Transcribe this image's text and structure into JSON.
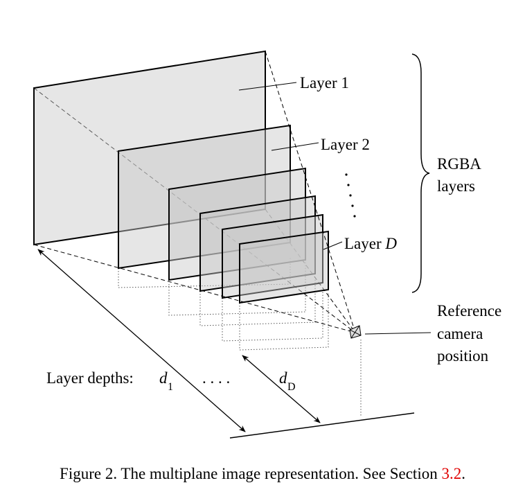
{
  "labels": {
    "layer1": "Layer 1",
    "layer2": "Layer 2",
    "layerD_prefix": "Layer ",
    "layerD_var": "D",
    "rgba_line1": "RGBA",
    "rgba_line2": "layers",
    "ref_line1": "Reference",
    "ref_line2": "camera",
    "ref_line3": "position",
    "depths": "Layer depths:",
    "d1_var": "d",
    "d1_sub": "1",
    "dD_var": "d",
    "dD_sub": "D",
    "ellipsis": ". . . ."
  },
  "caption": {
    "text": "Figure 2. The multiplane image representation. See Section ",
    "ref": "3.2",
    "end": "."
  }
}
